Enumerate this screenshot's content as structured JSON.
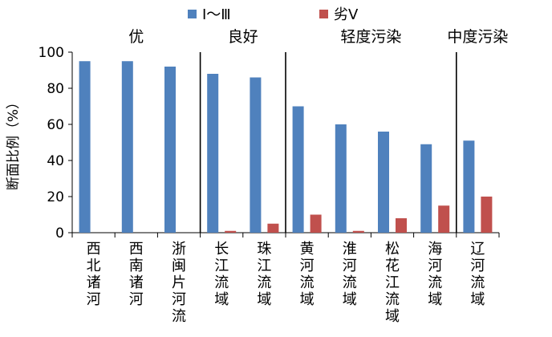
{
  "chart_data": {
    "type": "bar",
    "title": "",
    "xlabel": "",
    "ylabel": "断面比例（%）",
    "ylim": [
      0,
      100
    ],
    "yticks": [
      0,
      20,
      40,
      60,
      80,
      100
    ],
    "grid": false,
    "legend_position": "top",
    "categories": [
      "西北诸河",
      "西南诸河",
      "浙闽片河流",
      "长江流域",
      "珠江流域",
      "黄河流域",
      "淮河流域",
      "松花江流域",
      "海河流域",
      "辽河流域"
    ],
    "series": [
      {
        "name": "Ⅰ～Ⅲ",
        "color": "#4f81bd",
        "values": [
          95,
          95,
          92,
          88,
          86,
          70,
          60,
          56,
          49,
          51
        ]
      },
      {
        "name": "劣Ⅴ",
        "color": "#c0504d",
        "values": [
          0,
          0,
          0,
          1,
          5,
          10,
          1,
          8,
          15,
          20
        ]
      }
    ],
    "groups": [
      {
        "label": "优",
        "start": 0,
        "end": 2
      },
      {
        "label": "良好",
        "start": 3,
        "end": 4
      },
      {
        "label": "轻度污染",
        "start": 5,
        "end": 8
      },
      {
        "label": "中度污染",
        "start": 9,
        "end": 9
      }
    ]
  }
}
